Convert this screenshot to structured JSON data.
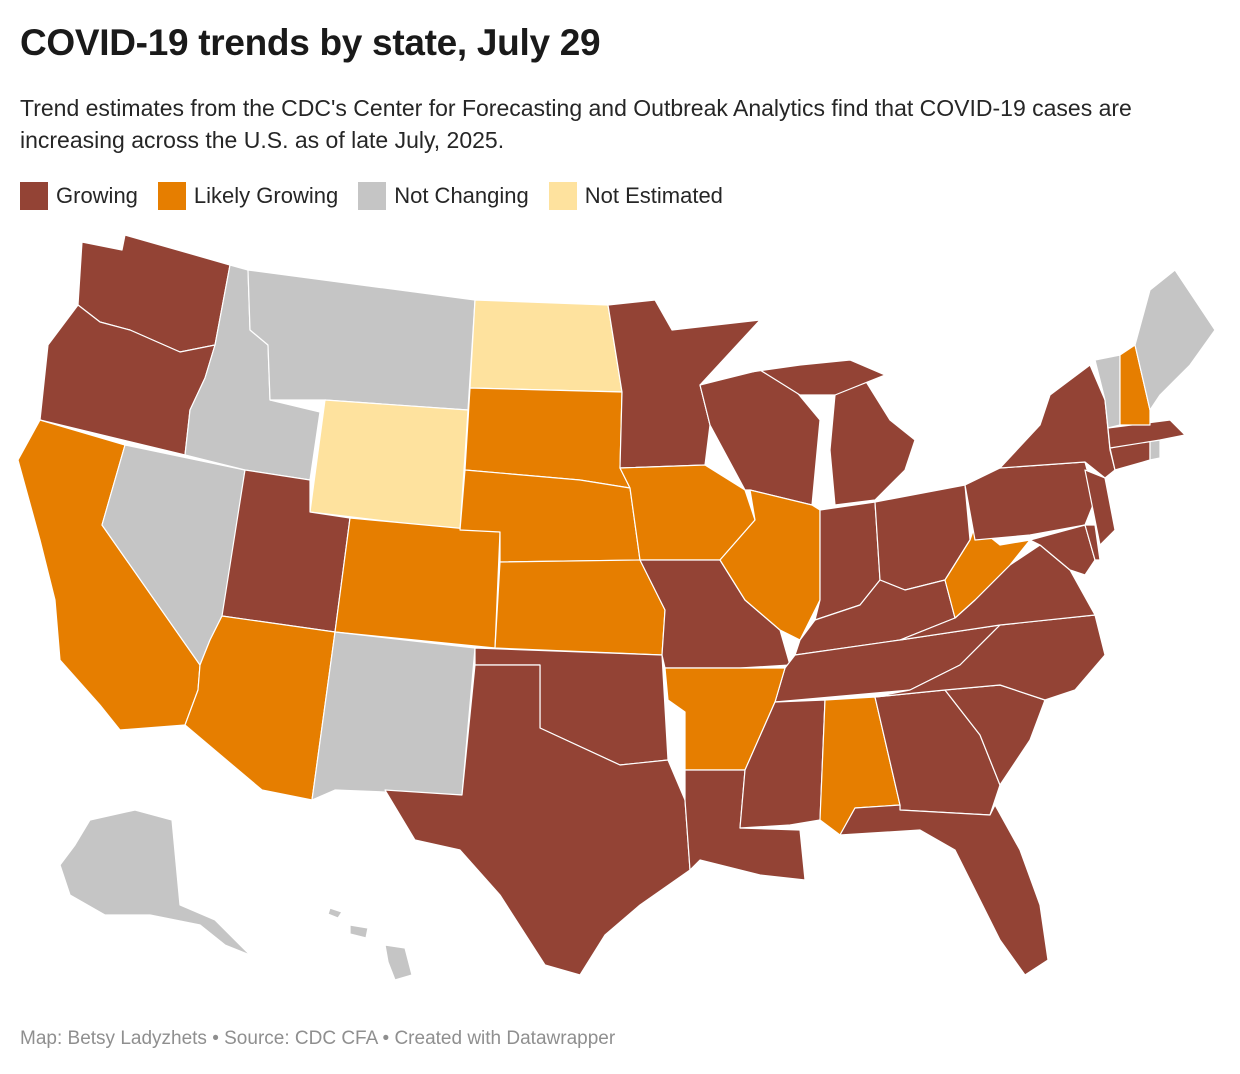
{
  "title": "COVID-19 trends by state, July 29",
  "subtitle": "Trend estimates from the CDC's Center for Forecasting and Outbreak Analytics find that COVID-19 cases are increasing across the U.S. as of late July, 2025.",
  "legend": [
    {
      "label": "Growing",
      "color": "#934335"
    },
    {
      "label": "Likely Growing",
      "color": "#e67e00"
    },
    {
      "label": "Not Changing",
      "color": "#c5c5c5"
    },
    {
      "label": "Not Estimated",
      "color": "#fee29e"
    }
  ],
  "states": {
    "WA": "Growing",
    "OR": "Growing",
    "CA": "Likely Growing",
    "NV": "Not Changing",
    "ID": "Not Changing",
    "MT": "Not Changing",
    "WY": "Not Estimated",
    "UT": "Growing",
    "AZ": "Likely Growing",
    "CO": "Likely Growing",
    "NM": "Not Changing",
    "ND": "Not Estimated",
    "SD": "Likely Growing",
    "NE": "Likely Growing",
    "KS": "Likely Growing",
    "OK": "Growing",
    "TX": "Growing",
    "MN": "Growing",
    "IA": "Likely Growing",
    "MO": "Growing",
    "AR": "Likely Growing",
    "LA": "Growing",
    "WI": "Growing",
    "IL": "Likely Growing",
    "MI": "Growing",
    "IN": "Growing",
    "OH": "Growing",
    "KY": "Growing",
    "TN": "Growing",
    "MS": "Growing",
    "AL": "Likely Growing",
    "GA": "Growing",
    "FL": "Growing",
    "SC": "Growing",
    "NC": "Growing",
    "VA": "Growing",
    "WV": "Likely Growing",
    "MD": "Growing",
    "DE": "Growing",
    "NJ": "Growing",
    "PA": "Growing",
    "NY": "Growing",
    "CT": "Growing",
    "RI": "Not Changing",
    "MA": "Growing",
    "VT": "Not Changing",
    "NH": "Likely Growing",
    "ME": "Not Changing",
    "AK": "Not Changing",
    "HI": "Not Changing"
  },
  "footer": "Map: Betsy Ladyzhets • Source: CDC CFA • Created with Datawrapper"
}
